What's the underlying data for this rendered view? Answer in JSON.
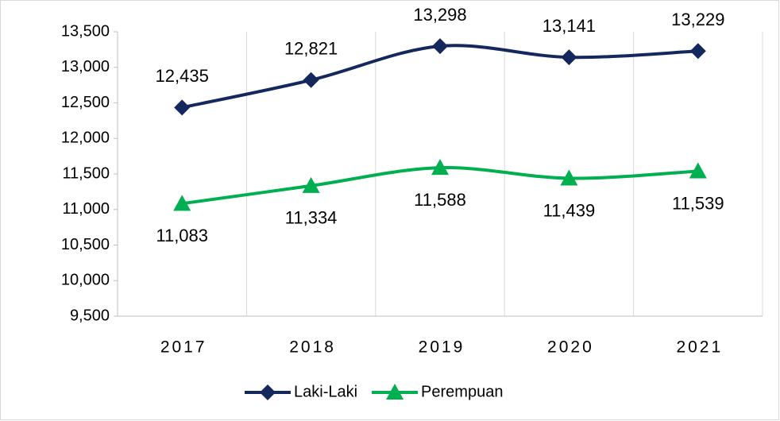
{
  "chart_data": {
    "type": "line",
    "categories": [
      "2017",
      "2018",
      "2019",
      "2020",
      "2021"
    ],
    "series": [
      {
        "name": "Laki-Laki",
        "color": "#14285e",
        "marker": "diamond",
        "label_position": "above",
        "values": [
          12435,
          12821,
          13298,
          13141,
          13229
        ],
        "value_labels": [
          "12,435",
          "12,821",
          "13,298",
          "13,141",
          "13,229"
        ]
      },
      {
        "name": "Perempuan",
        "color": "#00b050",
        "marker": "triangle",
        "label_position": "below",
        "values": [
          11083,
          11334,
          11588,
          11439,
          11539
        ],
        "value_labels": [
          "11,083",
          "11,334",
          "11,588",
          "11,439",
          "11,539"
        ]
      }
    ],
    "ylim": [
      9500,
      13500
    ],
    "yticks": [
      {
        "value": 9500,
        "label": "9,500"
      },
      {
        "value": 10000,
        "label": "10,000"
      },
      {
        "value": 10500,
        "label": "10,500"
      },
      {
        "value": 11000,
        "label": "11,000"
      },
      {
        "value": 11500,
        "label": "11,500"
      },
      {
        "value": 12000,
        "label": "12,000"
      },
      {
        "value": 12500,
        "label": "12,500"
      },
      {
        "value": 13000,
        "label": "13,000"
      },
      {
        "value": 13500,
        "label": "13,500"
      }
    ],
    "smooth": true,
    "legend": "bottom"
  }
}
